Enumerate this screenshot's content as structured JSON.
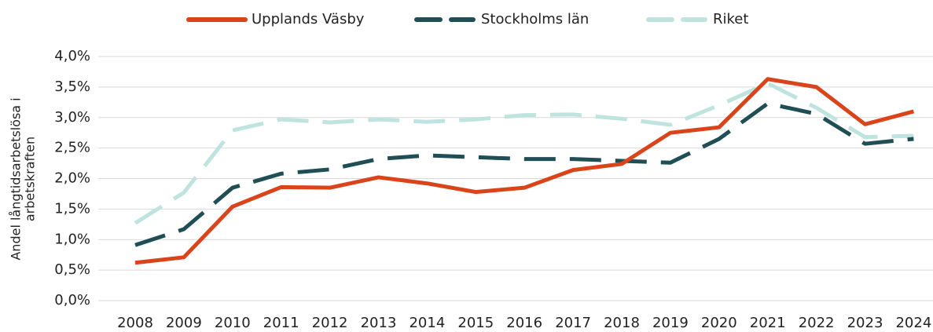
{
  "chart_data": {
    "type": "line",
    "ylabel": [
      "Andel långtidsarbetslösa i",
      "arbetskraften"
    ],
    "categories": [
      "2008",
      "2009",
      "2010",
      "2011",
      "2012",
      "2013",
      "2014",
      "2015",
      "2016",
      "2017",
      "2018",
      "2019",
      "2020",
      "2021",
      "2022",
      "2023",
      "2024"
    ],
    "series": [
      {
        "name": "Upplands Väsby",
        "color": "#d9441a",
        "dashed": false,
        "values": [
          0.62,
          0.71,
          1.54,
          1.86,
          1.85,
          2.02,
          1.92,
          1.78,
          1.85,
          2.14,
          2.24,
          2.75,
          2.84,
          3.63,
          3.5,
          2.89,
          3.1
        ]
      },
      {
        "name": "Stockholms län",
        "color": "#1f4e55",
        "dashed": true,
        "values": [
          0.91,
          1.17,
          1.85,
          2.08,
          2.15,
          2.32,
          2.38,
          2.35,
          2.32,
          2.32,
          2.29,
          2.26,
          2.65,
          3.23,
          3.06,
          2.57,
          2.65
        ]
      },
      {
        "name": "Riket",
        "color": "#bfe3df",
        "dashed": true,
        "values": [
          1.27,
          1.77,
          2.79,
          2.97,
          2.92,
          2.97,
          2.93,
          2.97,
          3.04,
          3.05,
          2.98,
          2.88,
          3.2,
          3.56,
          3.16,
          2.68,
          2.7
        ]
      }
    ],
    "ylim": [
      0,
      4
    ],
    "yticks": [
      {
        "value": 0,
        "label": "0,0%"
      },
      {
        "value": 0.5,
        "label": "0,5%"
      },
      {
        "value": 1,
        "label": "1,0%"
      },
      {
        "value": 1.5,
        "label": "1,5%"
      },
      {
        "value": 2,
        "label": "2,0%"
      },
      {
        "value": 2.5,
        "label": "2,5%"
      },
      {
        "value": 3,
        "label": "3,0%"
      },
      {
        "value": 3.5,
        "label": "3,5%"
      },
      {
        "value": 4,
        "label": "4,0%"
      }
    ],
    "grid": true,
    "legend": "top"
  }
}
